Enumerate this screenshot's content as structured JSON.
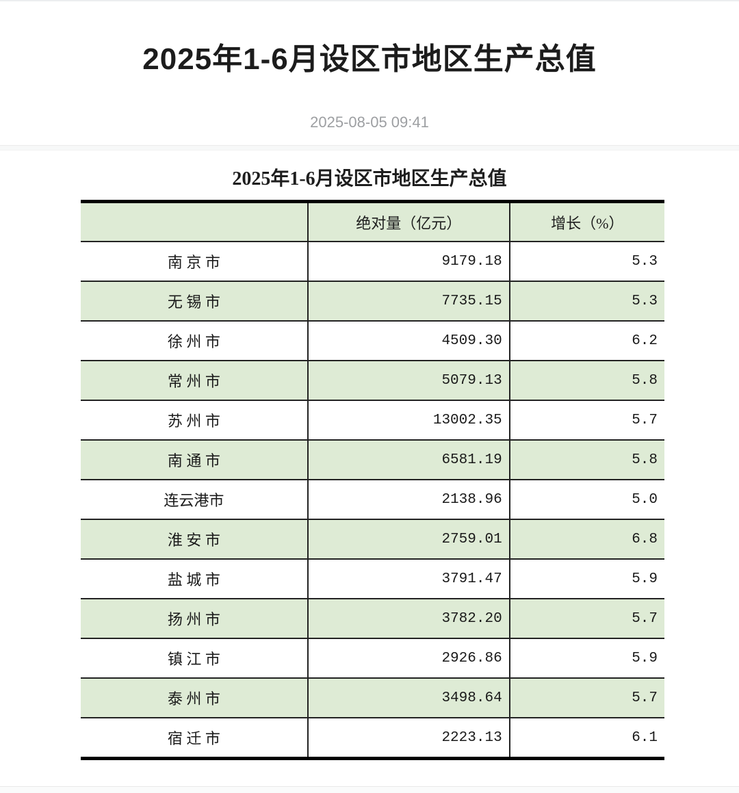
{
  "page": {
    "title": "2025年1-6月设区市地区生产总值",
    "date": "2025-08-05 09:41"
  },
  "table": {
    "title": "2025年1-6月设区市地区生产总值",
    "columns": [
      "",
      "绝对量（亿元）",
      "增长（%）"
    ],
    "rows": [
      {
        "city": "南 京 市",
        "value": "9179.18",
        "growth": "5.3",
        "shaded": false
      },
      {
        "city": "无 锡 市",
        "value": "7735.15",
        "growth": "5.3",
        "shaded": true
      },
      {
        "city": "徐 州 市",
        "value": "4509.30",
        "growth": "6.2",
        "shaded": false
      },
      {
        "city": "常 州 市",
        "value": "5079.13",
        "growth": "5.8",
        "shaded": true
      },
      {
        "city": "苏 州 市",
        "value": "13002.35",
        "growth": "5.7",
        "shaded": false
      },
      {
        "city": "南 通 市",
        "value": "6581.19",
        "growth": "5.8",
        "shaded": true
      },
      {
        "city": "连云港市",
        "value": "2138.96",
        "growth": "5.0",
        "shaded": false
      },
      {
        "city": "淮 安 市",
        "value": "2759.01",
        "growth": "6.8",
        "shaded": true
      },
      {
        "city": "盐 城 市",
        "value": "3791.47",
        "growth": "5.9",
        "shaded": false
      },
      {
        "city": "扬 州 市",
        "value": "3782.20",
        "growth": "5.7",
        "shaded": true
      },
      {
        "city": "镇 江 市",
        "value": "2926.86",
        "growth": "5.9",
        "shaded": false
      },
      {
        "city": "泰 州 市",
        "value": "3498.64",
        "growth": "5.7",
        "shaded": true
      },
      {
        "city": "宿 迁 市",
        "value": "2223.13",
        "growth": "6.1",
        "shaded": false
      }
    ]
  },
  "colors": {
    "row_green": "#deebd5",
    "border_black": "#000000",
    "grid_line": "#222222",
    "date_gray": "#9d9fa2"
  },
  "chart_data": {
    "type": "table",
    "title": "2025年1-6月设区市地区生产总值",
    "categories": [
      "南京市",
      "无锡市",
      "徐州市",
      "常州市",
      "苏州市",
      "南通市",
      "连云港市",
      "淮安市",
      "盐城市",
      "扬州市",
      "镇江市",
      "泰州市",
      "宿迁市"
    ],
    "series": [
      {
        "name": "绝对量（亿元）",
        "values": [
          9179.18,
          7735.15,
          4509.3,
          5079.13,
          13002.35,
          6581.19,
          2138.96,
          2759.01,
          3791.47,
          3782.2,
          2926.86,
          3498.64,
          2223.13
        ]
      },
      {
        "name": "增长（%）",
        "values": [
          5.3,
          5.3,
          6.2,
          5.8,
          5.7,
          5.8,
          5.0,
          6.8,
          5.9,
          5.7,
          5.9,
          5.7,
          6.1
        ]
      }
    ]
  }
}
